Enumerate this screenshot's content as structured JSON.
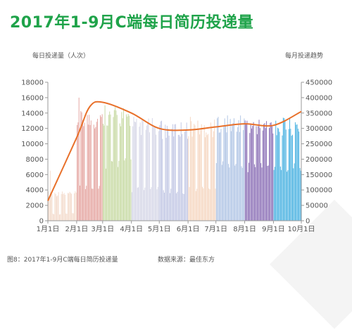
{
  "title": "2017年1-9月C端每日简历投递量",
  "left_axis_title": "每日投递量（人次）",
  "right_axis_title": "每月投递趋势",
  "caption_left": "图8：2017年1-9月C端每日简历投递量",
  "caption_right": "数据来源：最佳东方",
  "colors": {
    "title": "#1fa34a",
    "trend_line": "#e8702a",
    "month_bars": [
      "#f4dccd",
      "#e6a8a4",
      "#c9dba6",
      "#d7d8e8",
      "#c4c9e5",
      "#f6d8c3",
      "#b3c7e6",
      "#8f74b8",
      "#4fb4e2"
    ]
  },
  "chart_data": {
    "type": "bar",
    "categories": [
      "1月1日",
      "2月1日",
      "3月1日",
      "4月1日",
      "5月1日",
      "6月1日",
      "7月1日",
      "8月1日",
      "9月1日",
      "10月1日"
    ],
    "x_ticks": [
      "1月1日",
      "2月1日",
      "3月1日",
      "4月1日",
      "5月1日",
      "6月1日",
      "7月1日",
      "8月1日",
      "9月1日",
      "10月1日"
    ],
    "ylim": [
      0,
      18000
    ],
    "y_ticks": [
      "0",
      "2000",
      "4000",
      "6000",
      "8000",
      "10000",
      "12000",
      "14000",
      "16000",
      "18000"
    ],
    "y2lim": [
      0,
      450000
    ],
    "y2_ticks": [
      "0",
      "50000",
      "100000",
      "150000",
      "200000",
      "250000",
      "300000",
      "350000",
      "400000",
      "450000"
    ],
    "grid": false,
    "daily_series": {
      "name": "每日投递量（人次）",
      "months": [
        {
          "month": "1月",
          "weekday": 3500,
          "weekend": 900,
          "start_weekday": 0,
          "days": 31,
          "peak": 6500
        },
        {
          "month": "2月",
          "weekday": 13000,
          "weekend": 4500,
          "start_weekday": 3,
          "days": 28,
          "peak": 16000
        },
        {
          "month": "3月",
          "weekday": 13500,
          "weekend": 7500,
          "start_weekday": 3,
          "days": 31,
          "peak": 15000
        },
        {
          "month": "4月",
          "weekday": 12200,
          "weekend": 4000,
          "start_weekday": 6,
          "days": 30,
          "peak": 13500
        },
        {
          "month": "5月",
          "weekday": 11800,
          "weekend": 3800,
          "start_weekday": 1,
          "days": 31,
          "peak": 13000
        },
        {
          "month": "6月",
          "weekday": 12000,
          "weekend": 4200,
          "start_weekday": 4,
          "days": 30,
          "peak": 13500
        },
        {
          "month": "7月",
          "weekday": 12500,
          "weekend": 7200,
          "start_weekday": 6,
          "days": 31,
          "peak": 13500
        },
        {
          "month": "8月",
          "weekday": 12300,
          "weekend": 7000,
          "start_weekday": 2,
          "days": 31,
          "peak": 13000
        },
        {
          "month": "9月",
          "weekday": 12200,
          "weekend": 6800,
          "start_weekday": 5,
          "days": 30,
          "peak": 13000
        }
      ]
    },
    "trend_series": {
      "name": "每月投递趋势",
      "type": "line",
      "x_days": [
        0,
        31,
        45,
        59,
        90,
        120,
        151,
        181,
        212,
        243,
        273
      ],
      "values": [
        65000,
        270000,
        370000,
        385000,
        350000,
        300000,
        295000,
        305000,
        315000,
        310000,
        355000
      ]
    }
  }
}
